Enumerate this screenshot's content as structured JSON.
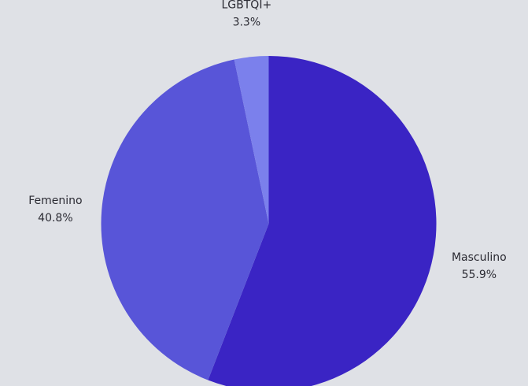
{
  "chart_data": {
    "type": "pie",
    "background": "#dfe1e6",
    "start_angle_deg": 0,
    "direction": "clockwise",
    "slices": [
      {
        "name": "Masculino",
        "value": 55.9,
        "display": "55.9%",
        "color": "#3a24c4"
      },
      {
        "name": "Femenino",
        "value": 40.8,
        "display": "40.8%",
        "color": "#5855d8"
      },
      {
        "name": "LGBTQI+",
        "value": 3.3,
        "display": "3.3%",
        "color": "#7b80ec"
      }
    ]
  }
}
